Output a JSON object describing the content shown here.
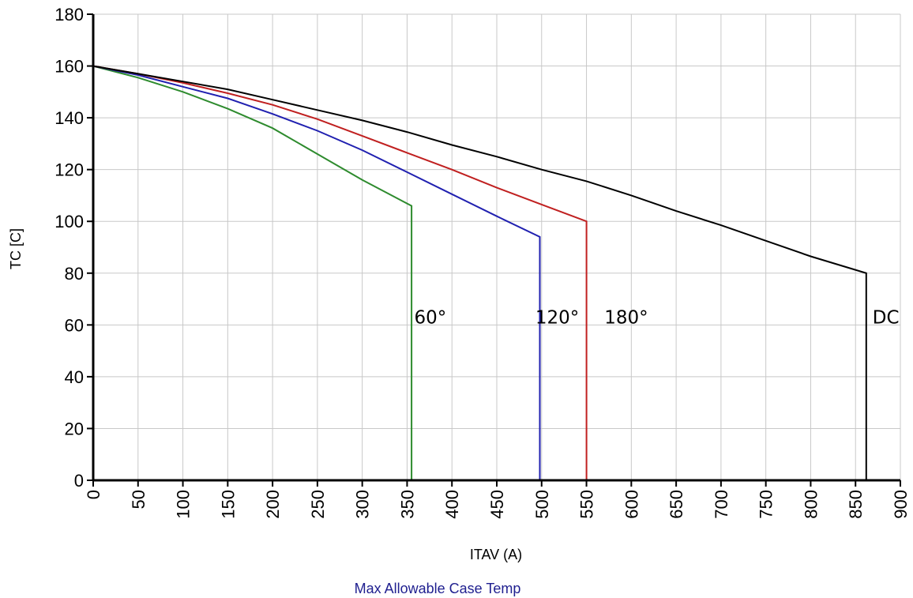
{
  "chart_data": {
    "type": "line",
    "title": "Max Allowable Case Temp",
    "title_color": "#1f1f8f",
    "xlabel": "ITAV (A)",
    "ylabel": "TC [C]",
    "xlim": [
      0,
      900
    ],
    "ylim": [
      0,
      180
    ],
    "x_ticks": [
      0,
      50,
      100,
      150,
      200,
      250,
      300,
      350,
      400,
      450,
      500,
      550,
      600,
      650,
      700,
      750,
      800,
      850,
      900
    ],
    "y_ticks": [
      0,
      20,
      40,
      60,
      80,
      100,
      120,
      140,
      160,
      180
    ],
    "grid": true,
    "series": [
      {
        "name": "60°",
        "color": "#2e8b2e",
        "x": [
          0,
          50,
          100,
          150,
          200,
          250,
          300,
          355,
          355
        ],
        "y": [
          160,
          155.5,
          150,
          143.5,
          136,
          126,
          116,
          106,
          0
        ]
      },
      {
        "name": "120°",
        "color": "#2020b0",
        "x": [
          0,
          50,
          100,
          150,
          200,
          250,
          300,
          350,
          400,
          450,
          498,
          498
        ],
        "y": [
          160,
          156.5,
          152,
          147.5,
          141.5,
          135,
          127.5,
          119,
          110.5,
          102,
          94,
          0
        ]
      },
      {
        "name": "180°",
        "color": "#c02020",
        "x": [
          0,
          50,
          100,
          150,
          200,
          250,
          300,
          350,
          400,
          450,
          500,
          550,
          550
        ],
        "y": [
          160,
          157,
          153.5,
          149.5,
          145,
          139.5,
          133,
          126.5,
          120,
          113,
          106.5,
          100,
          0
        ]
      },
      {
        "name": "DC",
        "color": "#000000",
        "x": [
          0,
          50,
          100,
          150,
          200,
          250,
          300,
          350,
          400,
          450,
          500,
          550,
          600,
          650,
          700,
          750,
          800,
          862,
          862
        ],
        "y": [
          160,
          157,
          154,
          151,
          147,
          143,
          139,
          134.5,
          129.5,
          125,
          120,
          115.5,
          110,
          104,
          98.5,
          92.5,
          86.5,
          80,
          0
        ]
      }
    ],
    "annotations": [
      {
        "text": "60°",
        "x": 358,
        "y": 63
      },
      {
        "text": "120°",
        "x": 493,
        "y": 63
      },
      {
        "text": "180°",
        "x": 570,
        "y": 63
      },
      {
        "text": "DC",
        "x": 869,
        "y": 63
      }
    ]
  }
}
